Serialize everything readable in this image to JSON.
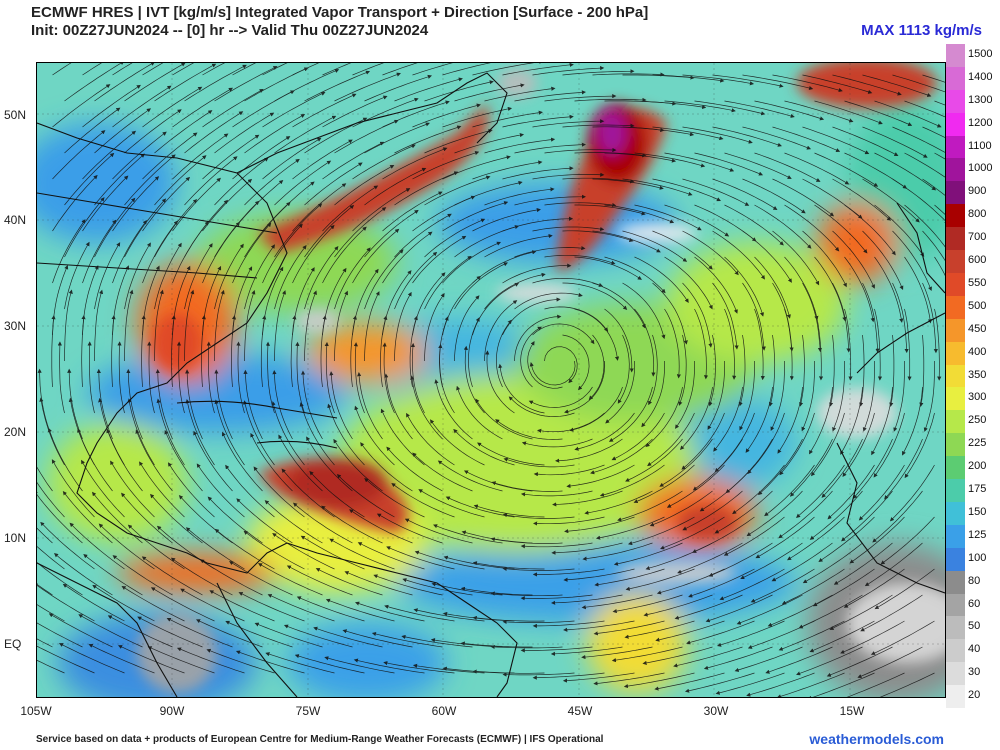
{
  "header": {
    "title": "ECMWF HRES | IVT [kg/m/s] Integrated Vapor Transport + Direction [Surface - 200 hPa]",
    "init_line": "Init: 00Z27JUN2024 -- [0] hr --> Valid Thu 00Z27JUN2024",
    "max_label": "MAX 1113 kg/m/s"
  },
  "map": {
    "lat_labels": [
      "50N",
      "40N",
      "30N",
      "20N",
      "10N",
      "EQ"
    ],
    "lon_labels": [
      "105W",
      "90W",
      "75W",
      "60W",
      "45W",
      "30W",
      "15W"
    ]
  },
  "colorbar": {
    "levels": [
      {
        "label": "1500",
        "color": "#d58ad0"
      },
      {
        "label": "1400",
        "color": "#d86ad6"
      },
      {
        "label": "1300",
        "color": "#e84ae8"
      },
      {
        "label": "1200",
        "color": "#f02af0"
      },
      {
        "label": "1100",
        "color": "#c01ac0"
      },
      {
        "label": "1000",
        "color": "#a0149c"
      },
      {
        "label": "900",
        "color": "#80107a"
      },
      {
        "label": "800",
        "color": "#a80000"
      },
      {
        "label": "700",
        "color": "#b02a24"
      },
      {
        "label": "600",
        "color": "#c8402c"
      },
      {
        "label": "550",
        "color": "#e04a28"
      },
      {
        "label": "500",
        "color": "#f26a22"
      },
      {
        "label": "450",
        "color": "#f5962a"
      },
      {
        "label": "400",
        "color": "#f7bb2e"
      },
      {
        "label": "350",
        "color": "#f2dc36"
      },
      {
        "label": "300",
        "color": "#e8ef40"
      },
      {
        "label": "250",
        "color": "#b6e84a"
      },
      {
        "label": "225",
        "color": "#8ed854"
      },
      {
        "label": "200",
        "color": "#5ccc72"
      },
      {
        "label": "175",
        "color": "#4cccaa"
      },
      {
        "label": "150",
        "color": "#40c0d8"
      },
      {
        "label": "125",
        "color": "#3aa0e8"
      },
      {
        "label": "100",
        "color": "#3a82e0"
      },
      {
        "label": "80",
        "color": "#8c8c8c"
      },
      {
        "label": "60",
        "color": "#a4a4a4"
      },
      {
        "label": "50",
        "color": "#bcbcbc"
      },
      {
        "label": "40",
        "color": "#cccccc"
      },
      {
        "label": "30",
        "color": "#dcdcdc"
      },
      {
        "label": "20",
        "color": "#eeeeee"
      }
    ]
  },
  "footer": {
    "credit": "Service based on data + products of European Centre for Medium-Range Weather Forecasts (ECMWF) | IFS Operational",
    "site": "weathermodels.com"
  }
}
